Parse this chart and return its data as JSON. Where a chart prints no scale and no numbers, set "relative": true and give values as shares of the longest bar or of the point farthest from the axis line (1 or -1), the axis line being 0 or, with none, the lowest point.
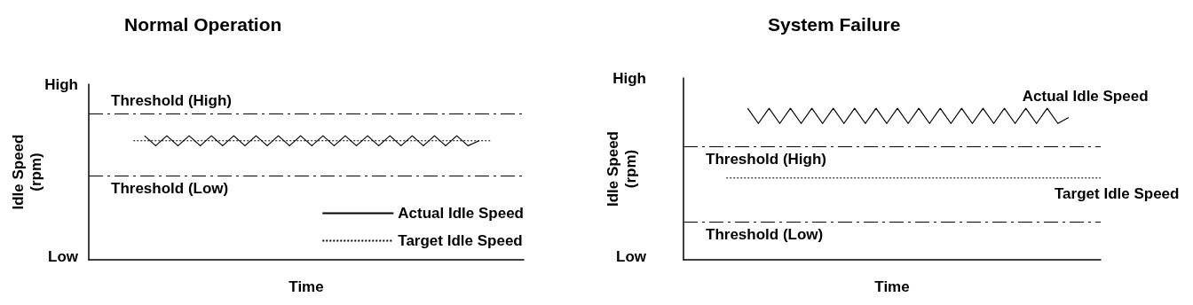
{
  "chart_data": [
    {
      "type": "line",
      "title": "Normal Operation",
      "xlabel": "Time",
      "ylabel": "Idle Speed (rpm)",
      "relative": true,
      "annotations": [
        "High",
        "Low"
      ],
      "categories": [
        null,
        null,
        null,
        null,
        null,
        null,
        null,
        null,
        null,
        null,
        null,
        null,
        null,
        null,
        null,
        null,
        null,
        null,
        null,
        null,
        null,
        null,
        null,
        null,
        null,
        null,
        null,
        null,
        null,
        null,
        null,
        null,
        null,
        null,
        null,
        null,
        null,
        null,
        null,
        null
      ],
      "series": [
        {
          "name": "Actual Idle Speed",
          "color": "#000000",
          "line_style": "solid",
          "values": [
            null,
            null,
            null,
            null,
            null,
            1,
            0.92,
            1,
            0.92,
            1,
            0.92,
            1,
            0.92,
            1,
            0.92,
            1,
            0.92,
            1,
            0.92,
            1,
            0.92,
            1,
            0.92,
            1,
            0.92,
            1,
            0.92,
            1,
            0.92,
            1,
            0.92,
            1,
            0.92,
            1,
            0.92,
            0.96,
            null,
            null,
            null,
            null
          ]
        },
        {
          "name": "Target Idle Speed",
          "color": "#000000",
          "line_style": "dotted",
          "values": [
            null,
            null,
            null,
            null,
            0.96,
            0.96,
            0.96,
            0.96,
            0.96,
            0.96,
            0.96,
            0.96,
            0.96,
            0.96,
            0.96,
            0.96,
            0.96,
            0.96,
            0.96,
            0.96,
            0.96,
            0.96,
            0.96,
            0.96,
            0.96,
            0.96,
            0.96,
            0.96,
            0.96,
            0.96,
            0.96,
            0.96,
            0.96,
            0.96,
            0.96,
            0.96,
            0.96,
            null,
            null,
            null
          ]
        }
      ],
      "ref_lines": [
        {
          "axis": "y",
          "value": 1.18,
          "label": "Threshold (High)",
          "line_style": "dashed"
        },
        {
          "axis": "y",
          "value": 0.68,
          "label": "Threshold (Low)",
          "line_style": "dashed"
        }
      ],
      "grid": false,
      "legend": "bottom right",
      "marker": "none"
    },
    {
      "type": "line",
      "title": "System Failure",
      "xlabel": "Time",
      "ylabel": "Idle Speed (rpm)",
      "relative": true,
      "annotations": [
        "High",
        "Low"
      ],
      "categories": [
        null,
        null,
        null,
        null,
        null,
        null,
        null,
        null,
        null,
        null,
        null,
        null,
        null,
        null,
        null,
        null,
        null,
        null,
        null,
        null,
        null,
        null,
        null,
        null,
        null,
        null,
        null,
        null,
        null,
        null,
        null,
        null,
        null,
        null,
        null,
        null,
        null,
        null,
        null,
        null
      ],
      "series": [
        {
          "name": "Actual Idle Speed",
          "color": "#000000",
          "line_style": "solid",
          "values": [
            null,
            null,
            null,
            null,
            null,
            null,
            1,
            0.9,
            1,
            0.9,
            1,
            0.9,
            1,
            0.9,
            1,
            0.9,
            1,
            0.9,
            1,
            0.9,
            1,
            0.9,
            1,
            0.9,
            1,
            0.9,
            1,
            0.9,
            1,
            0.9,
            1,
            0.9,
            1,
            0.9,
            1,
            0.9,
            0.94,
            null,
            null,
            null
          ]
        },
        {
          "name": "Target Idle Speed",
          "color": "#000000",
          "line_style": "dotted",
          "values": [
            null,
            null,
            null,
            null,
            0.54,
            0.54,
            0.54,
            0.54,
            0.54,
            0.54,
            0.54,
            0.54,
            0.54,
            0.54,
            0.54,
            0.54,
            0.54,
            0.54,
            0.54,
            0.54,
            0.54,
            0.54,
            0.54,
            0.54,
            0.54,
            0.54,
            0.54,
            0.54,
            0.54,
            0.54,
            0.54,
            0.54,
            0.54,
            0.54,
            0.54,
            0.54,
            0.54,
            0.54,
            0.54,
            0.54
          ]
        }
      ],
      "ref_lines": [
        {
          "axis": "y",
          "value": 0.75,
          "label": "Threshold (High)",
          "line_style": "dashed"
        },
        {
          "axis": "y",
          "value": 0.25,
          "label": "Threshold (Low)",
          "line_style": "dashed"
        }
      ],
      "grid": false,
      "legend": false,
      "marker": "none"
    }
  ]
}
